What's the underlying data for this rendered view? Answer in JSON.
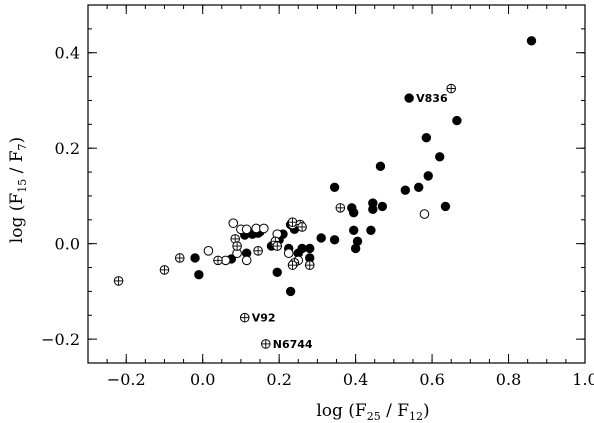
{
  "chart_data": {
    "type": "scatter",
    "title": "",
    "xlabel_main": "log (F",
    "xlabel_sub1": "25",
    "xlabel_mid": " / F",
    "xlabel_sub2": "12",
    "xlabel_end": ")",
    "ylabel_main": "log (F",
    "ylabel_sub1": "15",
    "ylabel_mid": " / F",
    "ylabel_sub2": "7",
    "ylabel_end": ")",
    "xlim": [
      -0.3,
      1.0
    ],
    "ylim": [
      -0.25,
      0.5
    ],
    "xticks": [
      -0.2,
      0.0,
      0.2,
      0.4,
      0.6,
      0.8,
      1.0
    ],
    "xtick_labels": [
      "−0.2",
      "0.0",
      "0.2",
      "0.4",
      "0.6",
      "0.8",
      "1.0"
    ],
    "yticks": [
      -0.2,
      0.0,
      0.2,
      0.4
    ],
    "ytick_labels": [
      "−0.2",
      "0.0",
      "0.2",
      "0.4"
    ],
    "grid": false,
    "series": [
      {
        "marker": "filled-circle",
        "x": [
          0.86,
          0.54,
          0.665,
          0.585,
          0.62,
          0.59,
          0.635,
          0.565,
          0.53,
          0.465,
          0.47,
          0.445,
          0.445,
          0.44,
          0.345,
          0.39,
          0.395,
          0.395,
          0.405,
          0.345,
          0.4,
          0.31,
          0.28,
          0.26,
          0.25,
          0.28,
          0.21,
          0.23,
          0.24,
          0.225,
          0.2,
          0.18,
          0.15,
          0.145,
          0.13,
          0.11,
          0.075,
          -0.02,
          -0.01,
          0.115,
          0.23,
          0.195
        ],
        "y": [
          0.425,
          0.305,
          0.258,
          0.222,
          0.182,
          0.142,
          0.078,
          0.118,
          0.112,
          0.162,
          0.078,
          0.085,
          0.072,
          0.028,
          0.118,
          0.075,
          0.065,
          0.028,
          0.005,
          0.008,
          -0.01,
          0.012,
          -0.01,
          -0.01,
          -0.02,
          -0.03,
          0.02,
          0.04,
          0.03,
          -0.01,
          0.008,
          -0.005,
          0.025,
          0.022,
          0.02,
          0.018,
          -0.032,
          -0.03,
          -0.065,
          -0.02,
          -0.1,
          -0.06
        ]
      },
      {
        "marker": "open-circle",
        "x": [
          0.58,
          0.08,
          0.1,
          0.14,
          0.115,
          0.16,
          0.195,
          0.235,
          0.015,
          0.06,
          0.09,
          0.115,
          0.19,
          0.225,
          0.25
        ],
        "y": [
          0.062,
          0.043,
          0.03,
          0.032,
          0.03,
          0.032,
          0.02,
          0.04,
          -0.015,
          -0.035,
          -0.02,
          -0.035,
          0.0,
          -0.02,
          -0.035
        ]
      },
      {
        "marker": "circled-plus",
        "x": [
          0.65,
          0.36,
          0.235,
          0.255,
          0.26,
          0.19,
          0.085,
          0.09,
          0.195,
          0.24,
          0.28,
          0.235,
          0.145,
          0.04,
          -0.06,
          -0.1,
          -0.22,
          0.11,
          0.165
        ],
        "y": [
          0.325,
          0.075,
          0.045,
          0.04,
          0.035,
          0.005,
          0.01,
          -0.005,
          -0.005,
          -0.04,
          -0.045,
          -0.045,
          -0.015,
          -0.035,
          -0.03,
          -0.055,
          -0.078,
          -0.155,
          -0.21
        ]
      }
    ],
    "annotations": [
      {
        "text": "V836",
        "x": 0.54,
        "y": 0.305
      },
      {
        "text": "V92",
        "x": 0.11,
        "y": -0.155
      },
      {
        "text": "N6744",
        "x": 0.165,
        "y": -0.21
      }
    ]
  }
}
